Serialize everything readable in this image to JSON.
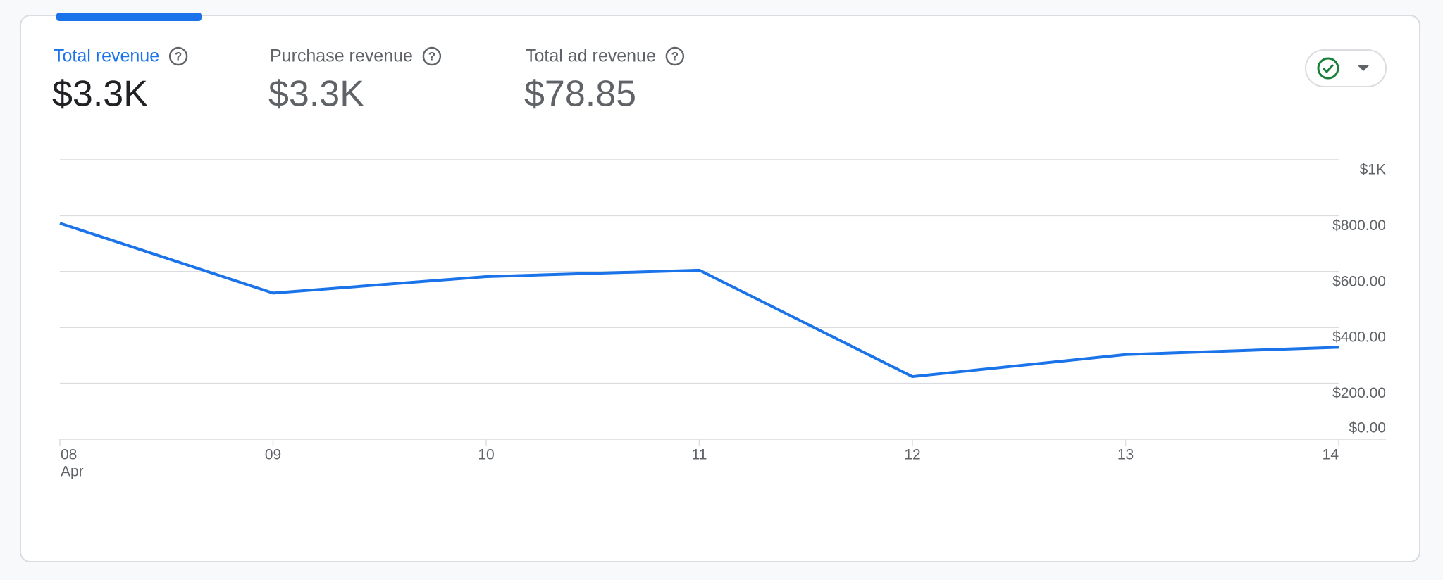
{
  "metrics": [
    {
      "label": "Total revenue",
      "value": "$3.3K"
    },
    {
      "label": "Purchase revenue",
      "value": "$3.3K"
    },
    {
      "label": "Total ad revenue",
      "value": "$78.85"
    }
  ],
  "chart_data": {
    "type": "line",
    "categories": [
      "08",
      "09",
      "10",
      "11",
      "12",
      "13",
      "14"
    ],
    "x_sublabel": "Apr",
    "values": [
      773,
      523,
      582,
      605,
      224,
      303,
      329
    ],
    "color": "#1a73e8",
    "ylim": [
      0,
      1000
    ],
    "yticks": [
      {
        "value": 0,
        "label": "$0.00"
      },
      {
        "value": 200,
        "label": "$200.00"
      },
      {
        "value": 400,
        "label": "$400.00"
      },
      {
        "value": 600,
        "label": "$600.00"
      },
      {
        "value": 800,
        "label": "$800.00"
      },
      {
        "value": 1000,
        "label": "$1K"
      }
    ],
    "grid": true
  }
}
